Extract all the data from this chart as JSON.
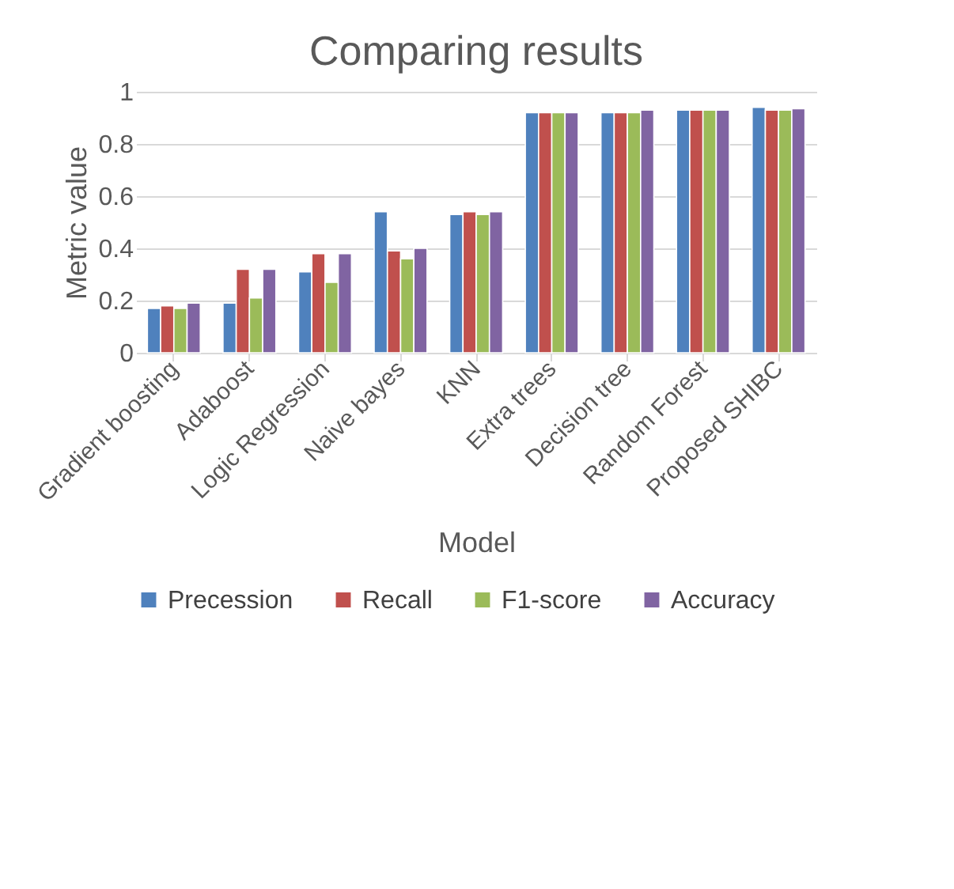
{
  "chart_data": {
    "type": "bar",
    "title": "Comparing results",
    "xlabel": "Model",
    "ylabel": "Metric value",
    "categories": [
      "Gradient boosting",
      "Adaboost",
      "Logic Regression",
      "Naive bayes",
      "KNN",
      "Extra trees",
      "Decision tree",
      "Random Forest",
      "Proposed SHIBC"
    ],
    "series": [
      {
        "name": "Precession",
        "color": "#4f81bd",
        "values": [
          0.17,
          0.19,
          0.31,
          0.54,
          0.53,
          0.92,
          0.92,
          0.93,
          0.94
        ]
      },
      {
        "name": "Recall",
        "color": "#c0504d",
        "values": [
          0.18,
          0.32,
          0.38,
          0.39,
          0.54,
          0.92,
          0.92,
          0.93,
          0.93
        ]
      },
      {
        "name": "F1-score",
        "color": "#9bbb59",
        "values": [
          0.17,
          0.21,
          0.27,
          0.36,
          0.53,
          0.92,
          0.92,
          0.93,
          0.93
        ]
      },
      {
        "name": "Accuracy",
        "color": "#8064a2",
        "values": [
          0.19,
          0.32,
          0.38,
          0.4,
          0.54,
          0.92,
          0.93,
          0.93,
          0.935
        ]
      }
    ],
    "ylim": [
      0,
      1
    ],
    "yticks": [
      0,
      0.2,
      0.4,
      0.6,
      0.8,
      1
    ],
    "grid": "y",
    "legend": "bottom"
  }
}
